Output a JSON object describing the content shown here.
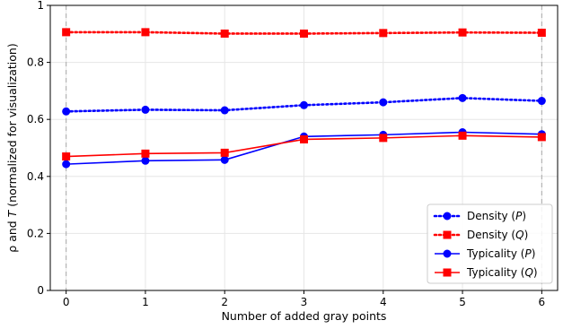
{
  "chart_data": {
    "type": "line",
    "x": [
      0,
      1,
      2,
      3,
      4,
      5,
      6
    ],
    "xlabel": "Number of added gray points",
    "ylabel": {
      "pre": "ρ and ",
      "ital": "T",
      "post": " (normalized for visualization)"
    },
    "xlim": [
      -0.2,
      6.2
    ],
    "ylim": [
      0,
      1
    ],
    "xticks": [
      "0",
      "1",
      "2",
      "3",
      "4",
      "5",
      "6"
    ],
    "yticks": [
      "0",
      "0.2",
      "0.4",
      "0.6",
      "0.8",
      "1"
    ],
    "ytick_values": [
      0,
      0.2,
      0.4,
      0.6,
      0.8,
      1
    ],
    "grid": true,
    "reference_lines_x": [
      0,
      6
    ],
    "legend_position": "lower-right",
    "series": [
      {
        "name": "Density (P)",
        "base": "Density",
        "sub": "P",
        "color": "#0000ff",
        "style": "dotted",
        "marker": "circle",
        "values": [
          0.628,
          0.634,
          0.632,
          0.65,
          0.66,
          0.675,
          0.665
        ]
      },
      {
        "name": "Density (Q)",
        "base": "Density",
        "sub": "Q",
        "color": "#ff0000",
        "style": "dotted",
        "marker": "square",
        "values": [
          0.906,
          0.906,
          0.901,
          0.901,
          0.903,
          0.905,
          0.904
        ]
      },
      {
        "name": "Typicality (P)",
        "base": "Typicality",
        "sub": "P",
        "color": "#0000ff",
        "style": "solid",
        "marker": "circle",
        "values": [
          0.443,
          0.455,
          0.458,
          0.54,
          0.546,
          0.555,
          0.548
        ]
      },
      {
        "name": "Typicality (Q)",
        "base": "Typicality",
        "sub": "Q",
        "color": "#ff0000",
        "style": "solid",
        "marker": "square",
        "values": [
          0.47,
          0.48,
          0.483,
          0.53,
          0.535,
          0.543,
          0.538
        ]
      }
    ]
  }
}
